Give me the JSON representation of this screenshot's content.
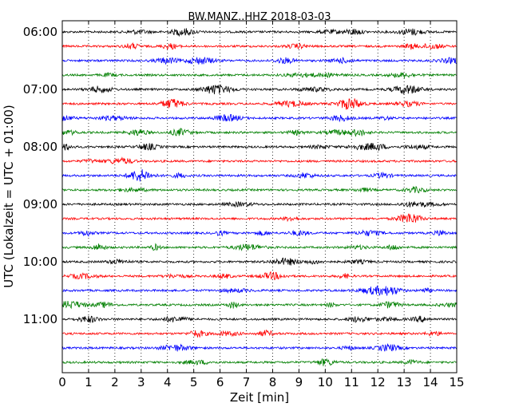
{
  "chart_data": {
    "type": "line",
    "title": "BW.MANZ..HHZ 2018-03-03",
    "xlabel": "Zeit  [min]",
    "ylabel": "UTC (Lokalzeit = UTC + 01:00)",
    "xlim": [
      0,
      15
    ],
    "x_ticks": [
      "0",
      "1",
      "2",
      "3",
      "4",
      "5",
      "6",
      "7",
      "8",
      "9",
      "10",
      "11",
      "12",
      "13",
      "14",
      "15"
    ],
    "y_tick_labels": [
      "06:00",
      "07:00",
      "08:00",
      "09:00",
      "10:00",
      "11:00"
    ],
    "traces_per_hour": 4,
    "trace_minutes": 15,
    "trace_start": "06:00",
    "trace_end": "11:45",
    "trace_count": 24,
    "color_cycle": [
      "#000000",
      "#ff0000",
      "#0000ff",
      "#007f00"
    ],
    "vertical_grid": "dotted"
  }
}
